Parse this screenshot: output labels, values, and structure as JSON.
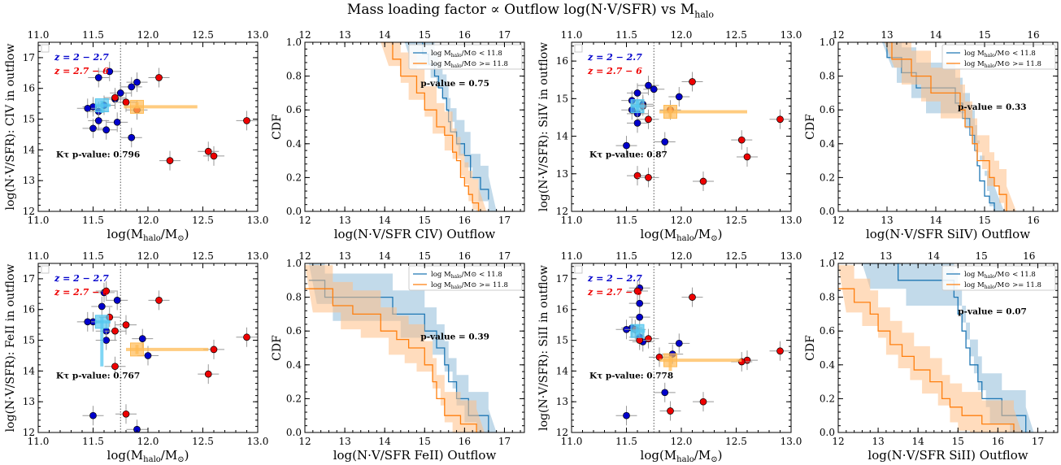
{
  "figure": {
    "title_text": "Mass loading factor ∝ Outflow log(N·V/SFR) vs M",
    "title_sub": "halo"
  },
  "colors": {
    "blue": "#1f77b4",
    "orange": "#ff7f0e",
    "blue_fill": "#8fbbd9",
    "orange_fill": "#ffbf86",
    "marker_blue": "#0000cc",
    "marker_red": "#ee0000",
    "median_blue": "#56c8f0",
    "median_orange": "#ffbb55",
    "err": "#999999"
  },
  "chart_data": [
    {
      "id": "scatter-civ",
      "type": "scatter",
      "row": 0,
      "col": 0,
      "ylabel": "log(N·V/SFR): CIV in outflow",
      "xlabel_pre": "log(M",
      "xlabel_sub": "halo",
      "xlabel_mid": "/M",
      "xlabel_sub2": "⊙",
      "xlabel_post": ")",
      "xlim": [
        11.0,
        13.0
      ],
      "ylim": [
        12,
        17.5
      ],
      "xticks": [
        "11.0",
        "11.5",
        "12.0",
        "12.5",
        "13.0"
      ],
      "yticks": [
        "12",
        "13",
        "14",
        "15",
        "16",
        "17"
      ],
      "top_xticks": [
        "11.0",
        "11.5",
        "12.0",
        "12.5",
        "13.0"
      ],
      "vline": 11.75,
      "legend": {
        "blue": "z = 2 − 2.7",
        "red": "z = 2.7 − 6"
      },
      "ktau_text": "Kτ p-value: 0.796",
      "blue_points": [
        [
          11.65,
          16.55
        ],
        [
          11.55,
          16.35
        ],
        [
          11.9,
          16.2
        ],
        [
          11.85,
          16.05
        ],
        [
          11.75,
          15.85
        ],
        [
          11.7,
          15.65
        ],
        [
          11.6,
          15.45
        ],
        [
          11.5,
          15.4
        ],
        [
          11.45,
          15.35
        ],
        [
          11.55,
          15.25
        ],
        [
          11.55,
          14.95
        ],
        [
          11.5,
          14.7
        ],
        [
          11.72,
          14.9
        ],
        [
          11.85,
          14.4
        ],
        [
          11.62,
          14.65
        ]
      ],
      "red_points": [
        [
          12.1,
          16.35
        ],
        [
          11.7,
          15.7
        ],
        [
          11.8,
          15.55
        ],
        [
          11.9,
          15.3
        ],
        [
          12.55,
          13.95
        ],
        [
          12.6,
          13.8
        ],
        [
          12.2,
          13.65
        ],
        [
          12.9,
          14.95
        ]
      ],
      "median_blue": {
        "x": 11.58,
        "y": 15.45,
        "xerr": [
          11.52,
          11.66
        ],
        "yerr": [
          15.2,
          15.6
        ]
      },
      "median_orange": {
        "x": 11.9,
        "y": 15.4,
        "xerr": [
          11.78,
          12.45
        ],
        "yerr": [
          15.35,
          15.55
        ]
      }
    },
    {
      "id": "cdf-civ",
      "type": "line",
      "row": 0,
      "col": 1,
      "ylabel": "CDF",
      "xlabel": "log(N·V/SFR CIV) Outflow",
      "xlim": [
        12,
        17.5
      ],
      "ylim": [
        0,
        1.0
      ],
      "xticks": [
        "12",
        "13",
        "14",
        "15",
        "16",
        "17"
      ],
      "yticks": [
        "0.0",
        "0.2",
        "0.4",
        "0.6",
        "0.8",
        "1.0"
      ],
      "top_xlim": [
        12,
        17.5
      ],
      "top_xticks": [
        "12",
        "13",
        "14",
        "15",
        "16",
        "17"
      ],
      "pvalue_text": "p-value = 0.75",
      "pvalue_pos": [
        14.9,
        0.74
      ],
      "legend_low": "log M",
      "legend_high": "log M",
      "legend_low_rest": "/M⊙ < 11.8",
      "legend_high_rest": "/M⊙ >= 11.8",
      "series": [
        {
          "name": "log Mhalo/M⊙ < 11.8",
          "color_key": "blue",
          "x": [
            14.5,
            14.95,
            15.1,
            15.25,
            15.35,
            15.45,
            15.55,
            15.6,
            15.65,
            15.8,
            16.0,
            16.15,
            16.4,
            16.6
          ],
          "y": [
            1.0,
            0.93,
            0.87,
            0.8,
            0.73,
            0.67,
            0.6,
            0.53,
            0.47,
            0.4,
            0.33,
            0.2,
            0.13,
            0.07
          ],
          "band_width": 0.14
        },
        {
          "name": "log Mhalo/M⊙ >= 11.8",
          "color_key": "orange",
          "x": [
            13.9,
            14.2,
            14.4,
            14.8,
            15.0,
            15.3,
            15.5,
            15.7,
            15.8,
            15.9,
            16.0,
            16.1,
            16.2,
            16.35
          ],
          "y": [
            1.0,
            0.9,
            0.8,
            0.7,
            0.6,
            0.5,
            0.45,
            0.35,
            0.3,
            0.2,
            0.15,
            0.1,
            0.05,
            0.0
          ],
          "band_width": 0.14
        }
      ]
    },
    {
      "id": "scatter-siiv",
      "type": "scatter",
      "row": 0,
      "col": 2,
      "ylabel": "log(N·V/SFR): SiIV in outflow",
      "xlabel_pre": "log(M",
      "xlabel_sub": "halo",
      "xlabel_mid": "/M",
      "xlabel_sub2": "⊙",
      "xlabel_post": ")",
      "xlim": [
        11.0,
        13.0
      ],
      "ylim": [
        12,
        16.5
      ],
      "xticks": [
        "11.0",
        "11.5",
        "12.0",
        "12.5",
        "13.0"
      ],
      "yticks": [
        "12",
        "13",
        "14",
        "15",
        "16"
      ],
      "top_xticks": [
        "11.0",
        "11.5",
        "12.0",
        "12.5",
        "13.0"
      ],
      "vline": 11.75,
      "legend": {
        "blue": "z = 2 − 2.7",
        "red": "z = 2.7 − 6"
      },
      "ktau_text": "Kτ p-value: 0.87",
      "blue_points": [
        [
          11.7,
          15.35
        ],
        [
          11.6,
          15.15
        ],
        [
          11.75,
          15.25
        ],
        [
          11.55,
          14.95
        ],
        [
          11.65,
          14.85
        ],
        [
          11.55,
          14.7
        ],
        [
          11.6,
          14.6
        ],
        [
          11.6,
          14.35
        ],
        [
          11.98,
          15.05
        ],
        [
          11.5,
          13.75
        ],
        [
          11.85,
          13.85
        ]
      ],
      "red_points": [
        [
          12.1,
          15.45
        ],
        [
          11.65,
          14.8
        ],
        [
          11.9,
          14.7
        ],
        [
          11.7,
          14.45
        ],
        [
          12.9,
          14.45
        ],
        [
          12.55,
          13.9
        ],
        [
          12.6,
          13.45
        ],
        [
          11.6,
          12.95
        ],
        [
          11.7,
          12.9
        ],
        [
          12.2,
          12.8
        ]
      ],
      "median_blue": {
        "x": 11.6,
        "y": 14.8,
        "xerr": [
          11.54,
          11.68
        ],
        "yerr": [
          14.65,
          14.95
        ]
      },
      "median_orange": {
        "x": 11.9,
        "y": 14.65,
        "xerr": [
          11.8,
          12.6
        ],
        "yerr": [
          14.5,
          14.8
        ]
      }
    },
    {
      "id": "cdf-siiv",
      "type": "line",
      "row": 0,
      "col": 3,
      "ylabel": "CDF",
      "xlabel": "log(N·V/SFR SiIV) Outflow",
      "xlim": [
        12,
        16.5
      ],
      "ylim": [
        0,
        1.0
      ],
      "xticks": [
        "12",
        "13",
        "14",
        "15",
        "16"
      ],
      "yticks": [
        "0.0",
        "0.2",
        "0.4",
        "0.6",
        "0.8",
        "1.0"
      ],
      "top_xlim": [
        12,
        16.5
      ],
      "top_xticks": [
        "12",
        "13",
        "14",
        "15",
        "16"
      ],
      "pvalue_text": "p-value = 0.33",
      "pvalue_pos": [
        14.45,
        0.6
      ],
      "legend_low": "log M",
      "legend_high": "log M",
      "legend_low_rest": "/M⊙ < 11.8",
      "legend_high_rest": "/M⊙ >= 11.8",
      "series": [
        {
          "name": "log Mhalo/M⊙ < 11.8",
          "color_key": "blue",
          "x": [
            12.9,
            13.0,
            13.3,
            13.6,
            14.0,
            14.4,
            14.55,
            14.7,
            14.8,
            14.85,
            14.9,
            15.0,
            15.1,
            15.2
          ],
          "y": [
            1.0,
            0.91,
            0.82,
            0.73,
            0.73,
            0.64,
            0.55,
            0.45,
            0.36,
            0.27,
            0.18,
            0.09,
            0.05,
            0.0
          ],
          "band_width": 0.15
        },
        {
          "name": "log Mhalo/M⊙ >= 11.8",
          "color_key": "orange",
          "x": [
            12.95,
            13.1,
            13.5,
            13.9,
            14.3,
            14.5,
            14.6,
            14.75,
            14.85,
            15.0,
            15.1,
            15.2,
            15.3,
            15.45
          ],
          "y": [
            1.0,
            0.9,
            0.8,
            0.7,
            0.7,
            0.6,
            0.5,
            0.4,
            0.3,
            0.3,
            0.2,
            0.15,
            0.1,
            0.0
          ],
          "band_width": 0.15
        }
      ]
    },
    {
      "id": "scatter-feii",
      "type": "scatter",
      "row": 1,
      "col": 0,
      "ylabel": "log(N·V/SFR): FeII in outflow",
      "xlabel_pre": "log(M",
      "xlabel_sub": "halo",
      "xlabel_mid": "/M",
      "xlabel_sub2": "⊙",
      "xlabel_post": ")",
      "xlim": [
        11.0,
        13.0
      ],
      "ylim": [
        12,
        17.5
      ],
      "xticks": [
        "11.0",
        "11.5",
        "12.0",
        "12.5",
        "13.0"
      ],
      "yticks": [
        "12",
        "13",
        "14",
        "15",
        "16",
        "17"
      ],
      "top_xticks": [
        "11.0",
        "11.5",
        "12.0",
        "12.5",
        "13.0"
      ],
      "vline": 11.75,
      "legend": {
        "blue": "z = 2 − 2.7",
        "red": "z = 2.7 − 6"
      },
      "ktau_text": "Kτ p-value: 0.767",
      "blue_points": [
        [
          11.6,
          16.55
        ],
        [
          11.72,
          16.3
        ],
        [
          11.58,
          16.1
        ],
        [
          11.5,
          15.6
        ],
        [
          11.45,
          15.6
        ],
        [
          11.62,
          15.3
        ],
        [
          11.62,
          15.0
        ],
        [
          11.95,
          15.05
        ],
        [
          12.0,
          14.5
        ],
        [
          11.5,
          12.55
        ],
        [
          11.9,
          12.1
        ]
      ],
      "red_points": [
        [
          11.62,
          16.6
        ],
        [
          12.1,
          16.3
        ],
        [
          11.65,
          15.75
        ],
        [
          11.8,
          15.5
        ],
        [
          11.7,
          15.3
        ],
        [
          12.9,
          15.1
        ],
        [
          12.6,
          14.7
        ],
        [
          11.7,
          14.15
        ],
        [
          12.55,
          13.9
        ],
        [
          11.8,
          12.6
        ]
      ],
      "median_blue": {
        "x": 11.58,
        "y": 15.6,
        "xerr": [
          11.52,
          11.66
        ],
        "yerr": [
          14.15,
          15.75
        ]
      },
      "median_orange": {
        "x": 11.9,
        "y": 14.7,
        "xerr": [
          11.8,
          12.55
        ],
        "yerr": [
          14.55,
          14.85
        ]
      }
    },
    {
      "id": "cdf-feii",
      "type": "line",
      "row": 1,
      "col": 1,
      "ylabel": "CDF",
      "xlabel": "log(N·V/SFR FeII) Outflow",
      "xlim": [
        12,
        17.5
      ],
      "ylim": [
        0,
        1.0
      ],
      "xticks": [
        "12",
        "13",
        "14",
        "15",
        "16",
        "17"
      ],
      "yticks": [
        "0.0",
        "0.2",
        "0.4",
        "0.6",
        "0.8",
        "1.0"
      ],
      "top_xlim": [
        12,
        17.5
      ],
      "top_xticks": [
        "12",
        "13",
        "14",
        "15",
        "16",
        "17"
      ],
      "pvalue_text": "p-value = 0.39",
      "pvalue_pos": [
        14.9,
        0.55
      ],
      "legend_low": "log M",
      "legend_high": "log M",
      "legend_low_rest": "/M⊙ < 11.8",
      "legend_high_rest": "/M⊙ >= 11.8",
      "series": [
        {
          "name": "log Mhalo/M⊙ < 11.8",
          "color_key": "blue",
          "x": [
            12.1,
            12.5,
            13.1,
            14.2,
            14.4,
            15.0,
            15.3,
            15.5,
            15.6,
            15.8,
            16.1,
            16.6
          ],
          "y": [
            0.9,
            0.8,
            0.8,
            0.7,
            0.7,
            0.6,
            0.5,
            0.4,
            0.3,
            0.2,
            0.1,
            0.0
          ],
          "band_width": 0.14
        },
        {
          "name": "log Mhalo/M⊙ >= 11.8",
          "color_key": "orange",
          "x": [
            12.0,
            12.7,
            13.2,
            13.9,
            14.3,
            14.6,
            15.0,
            15.2,
            15.3,
            15.5,
            15.9,
            16.3
          ],
          "y": [
            0.85,
            0.75,
            0.7,
            0.6,
            0.55,
            0.5,
            0.4,
            0.3,
            0.2,
            0.1,
            0.05,
            0.0
          ],
          "band_width": 0.14
        }
      ]
    },
    {
      "id": "scatter-siii",
      "type": "scatter",
      "row": 1,
      "col": 2,
      "ylabel": "log(N·V/SFR): SiII in outflow",
      "xlabel_pre": "log(M",
      "xlabel_sub": "halo",
      "xlabel_mid": "/M",
      "xlabel_sub2": "⊙",
      "xlabel_post": ")",
      "xlim": [
        11.0,
        13.0
      ],
      "ylim": [
        12,
        17.5
      ],
      "xticks": [
        "11.0",
        "11.5",
        "12.0",
        "12.5",
        "13.0"
      ],
      "yticks": [
        "12",
        "13",
        "14",
        "15",
        "16",
        "17"
      ],
      "top_xticks": [
        "11.0",
        "11.5",
        "12.0",
        "12.5",
        "13.0"
      ],
      "vline": 11.75,
      "legend": {
        "blue": "z = 2 − 2.7",
        "red": "z = 2.7 − 6"
      },
      "ktau_text": "Kτ p-value: 0.778",
      "blue_points": [
        [
          11.62,
          16.7
        ],
        [
          11.62,
          16.2
        ],
        [
          11.62,
          15.75
        ],
        [
          11.55,
          15.4
        ],
        [
          11.5,
          15.35
        ],
        [
          11.62,
          15.1
        ],
        [
          11.65,
          14.95
        ],
        [
          11.98,
          14.9
        ],
        [
          11.92,
          14.55
        ],
        [
          11.85,
          13.3
        ],
        [
          11.5,
          12.55
        ]
      ],
      "red_points": [
        [
          11.6,
          16.6
        ],
        [
          12.1,
          16.4
        ],
        [
          11.58,
          15.35
        ],
        [
          11.7,
          15.05
        ],
        [
          11.62,
          15.0
        ],
        [
          12.9,
          14.65
        ],
        [
          11.8,
          14.45
        ],
        [
          12.6,
          14.35
        ],
        [
          12.55,
          14.3
        ],
        [
          12.2,
          13.0
        ],
        [
          11.9,
          12.7
        ]
      ],
      "median_blue": {
        "x": 11.6,
        "y": 15.3,
        "xerr": [
          11.54,
          11.67
        ],
        "yerr": [
          15.15,
          15.5
        ]
      },
      "median_orange": {
        "x": 11.9,
        "y": 14.35,
        "xerr": [
          11.8,
          12.55
        ],
        "yerr": [
          14.0,
          14.5
        ]
      }
    },
    {
      "id": "cdf-siii",
      "type": "line",
      "row": 1,
      "col": 3,
      "ylabel": "CDF",
      "xlabel": "log(N·V/SFR SiII) Outflow",
      "xlim": [
        12,
        17.5
      ],
      "ylim": [
        0,
        1.0
      ],
      "xticks": [
        "12",
        "13",
        "14",
        "15",
        "16",
        "17"
      ],
      "yticks": [
        "0.0",
        "0.2",
        "0.4",
        "0.6",
        "0.8",
        "1.0"
      ],
      "top_xlim": [
        12,
        16.6
      ],
      "top_xticks": [
        "12",
        "13",
        "14",
        "15",
        "16"
      ],
      "pvalue_text": "p-value = 0.07",
      "pvalue_pos": [
        15.0,
        0.7
      ],
      "legend_low": "log M",
      "legend_high": "log M",
      "legend_low_rest": "/M⊙ < 11.8",
      "legend_high_rest": "/M⊙ >= 11.8",
      "series": [
        {
          "name": "log Mhalo/M⊙ < 11.8",
          "color_key": "blue",
          "x": [
            12.6,
            13.5,
            14.6,
            14.9,
            15.0,
            15.1,
            15.2,
            15.3,
            15.5,
            15.6,
            15.8,
            16.1,
            16.5,
            16.7
          ],
          "y": [
            1.0,
            0.9,
            0.9,
            0.8,
            0.7,
            0.6,
            0.5,
            0.4,
            0.3,
            0.2,
            0.2,
            0.1,
            0.1,
            0.0
          ],
          "band_width": 0.15
        },
        {
          "name": "log Mhalo/M⊙ >= 11.8",
          "color_key": "orange",
          "x": [
            12.0,
            12.4,
            12.8,
            13.0,
            13.3,
            13.6,
            13.9,
            14.3,
            14.6,
            14.8,
            15.1,
            15.6,
            16.4
          ],
          "y": [
            0.85,
            0.77,
            0.7,
            0.6,
            0.52,
            0.45,
            0.37,
            0.3,
            0.2,
            0.15,
            0.1,
            0.05,
            0.0
          ],
          "band_width": 0.14
        }
      ]
    }
  ]
}
